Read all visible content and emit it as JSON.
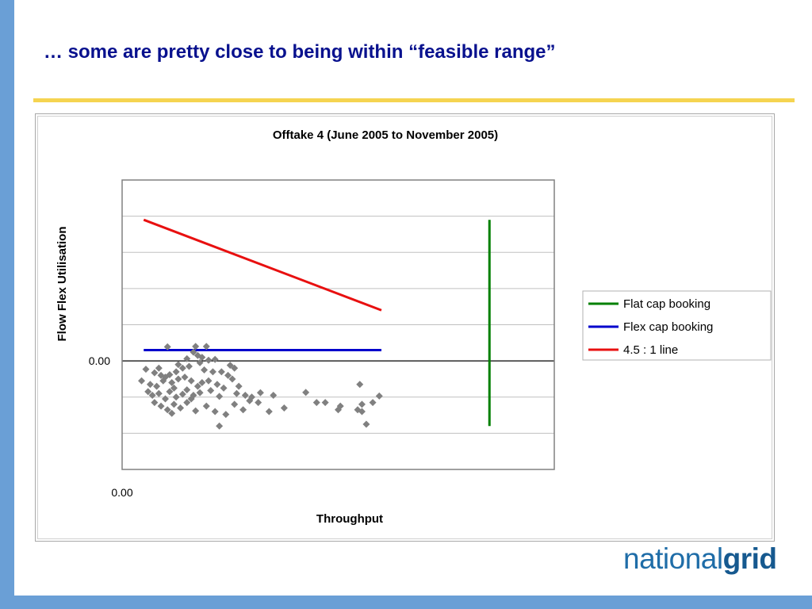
{
  "slide": {
    "title": "… some are pretty close to being within “feasible range”"
  },
  "logo": {
    "light": "national",
    "bold": "grid"
  },
  "colors": {
    "side_bar": "#6a9fd6",
    "title_rule": "#f5d451",
    "title_text": "#08118e",
    "scatter": "#808080"
  },
  "chart_data": {
    "type": "scatter",
    "title": "Offtake 4 (June 2005 to November 2005)",
    "xlabel": "Throughput",
    "ylabel": "Flow Flex Utilisation",
    "x_tick_labels": [
      {
        "value": 0,
        "label": "0.00"
      }
    ],
    "y_tick_labels": [
      {
        "value": 0,
        "label": "0.00"
      }
    ],
    "xlim": [
      -1,
      19
    ],
    "ylim": [
      -3,
      5
    ],
    "gridlines_y": [
      -2,
      -1,
      0,
      1,
      2,
      3,
      4
    ],
    "grid": "horizontal",
    "legend_position": "right",
    "series": [
      {
        "name": "Flat cap booking",
        "kind": "line",
        "color": "#008000",
        "points": [
          [
            16.0,
            3.9
          ],
          [
            16.0,
            -1.8
          ]
        ]
      },
      {
        "name": "Flex cap booking",
        "kind": "line",
        "color": "#0000cc",
        "points": [
          [
            0.0,
            0.3
          ],
          [
            11.0,
            0.3
          ]
        ]
      },
      {
        "name": "4.5 : 1 line",
        "kind": "line",
        "color": "#e81010",
        "points": [
          [
            0.0,
            3.9
          ],
          [
            11.0,
            1.4
          ]
        ]
      },
      {
        "name": "",
        "kind": "scatter",
        "color": "#808080",
        "points": [
          [
            1.1,
            0.39
          ],
          [
            2.4,
            0.4
          ],
          [
            2.9,
            0.4
          ],
          [
            2.3,
            0.24
          ],
          [
            2.0,
            0.06
          ],
          [
            2.5,
            0.15
          ],
          [
            3.3,
            0.04
          ],
          [
            3.0,
            0.02
          ],
          [
            0.1,
            -0.23
          ],
          [
            0.5,
            -0.33
          ],
          [
            0.8,
            -0.4
          ],
          [
            1.2,
            -0.38
          ],
          [
            1.5,
            -0.3
          ],
          [
            1.8,
            -0.2
          ],
          [
            2.1,
            -0.15
          ],
          [
            2.6,
            -0.05
          ],
          [
            2.8,
            -0.25
          ],
          [
            3.2,
            -0.3
          ],
          [
            4.0,
            -0.12
          ],
          [
            4.2,
            -0.2
          ],
          [
            -0.1,
            -0.55
          ],
          [
            0.3,
            -0.65
          ],
          [
            0.6,
            -0.7
          ],
          [
            0.9,
            -0.55
          ],
          [
            1.3,
            -0.6
          ],
          [
            1.6,
            -0.5
          ],
          [
            1.9,
            -0.45
          ],
          [
            2.2,
            -0.55
          ],
          [
            2.5,
            -0.7
          ],
          [
            2.7,
            -0.6
          ],
          [
            3.0,
            -0.55
          ],
          [
            3.4,
            -0.65
          ],
          [
            3.7,
            -0.75
          ],
          [
            4.1,
            -0.5
          ],
          [
            4.4,
            -0.7
          ],
          [
            0.2,
            -0.85
          ],
          [
            0.4,
            -0.95
          ],
          [
            0.7,
            -0.9
          ],
          [
            1.0,
            -1.05
          ],
          [
            1.2,
            -0.85
          ],
          [
            1.5,
            -1.0
          ],
          [
            1.8,
            -0.92
          ],
          [
            2.0,
            -0.8
          ],
          [
            2.3,
            -0.95
          ],
          [
            2.6,
            -0.88
          ],
          [
            3.1,
            -0.82
          ],
          [
            3.5,
            -0.98
          ],
          [
            4.3,
            -0.9
          ],
          [
            4.7,
            -0.95
          ],
          [
            5.0,
            -1.0
          ],
          [
            5.4,
            -0.88
          ],
          [
            6.0,
            -0.95
          ],
          [
            0.5,
            -1.15
          ],
          [
            0.8,
            -1.25
          ],
          [
            1.1,
            -1.35
          ],
          [
            1.4,
            -1.2
          ],
          [
            1.7,
            -1.3
          ],
          [
            2.0,
            -1.15
          ],
          [
            2.4,
            -1.38
          ],
          [
            2.9,
            -1.25
          ],
          [
            3.3,
            -1.4
          ],
          [
            3.8,
            -1.48
          ],
          [
            4.2,
            -1.2
          ],
          [
            4.6,
            -1.35
          ],
          [
            5.3,
            -1.15
          ],
          [
            5.8,
            -1.4
          ],
          [
            6.5,
            -1.3
          ],
          [
            3.5,
            -1.8
          ],
          [
            1.0,
            -0.45
          ],
          [
            1.4,
            -0.75
          ],
          [
            2.2,
            -1.05
          ],
          [
            3.6,
            -0.3
          ],
          [
            7.5,
            -0.87
          ],
          [
            8.0,
            -1.15
          ],
          [
            8.4,
            -1.15
          ],
          [
            9.0,
            -1.35
          ],
          [
            9.9,
            -1.35
          ],
          [
            10.1,
            -1.4
          ],
          [
            10.9,
            -0.97
          ],
          [
            10.0,
            -0.65
          ],
          [
            10.1,
            -1.2
          ],
          [
            10.6,
            -1.15
          ],
          [
            9.1,
            -1.25
          ],
          [
            10.3,
            -1.75
          ],
          [
            0.7,
            -0.2
          ],
          [
            1.6,
            -0.1
          ],
          [
            2.7,
            0.1
          ],
          [
            3.9,
            -0.4
          ],
          [
            1.3,
            -1.45
          ],
          [
            4.9,
            -1.1
          ]
        ]
      }
    ],
    "legend": [
      {
        "label": "Flat cap booking",
        "color": "#008000"
      },
      {
        "label": "Flex cap booking",
        "color": "#0000cc"
      },
      {
        "label": "4.5 : 1 line",
        "color": "#e81010"
      }
    ]
  }
}
